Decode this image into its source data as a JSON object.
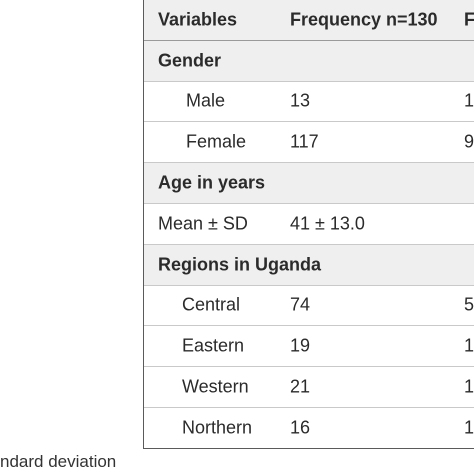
{
  "table": {
    "header": {
      "variables": "Variables",
      "frequency": "Frequency n=130",
      "col3": "F"
    },
    "sections": [
      {
        "title": "Gender",
        "rows": [
          {
            "label": "Male",
            "frequency": "13",
            "col3": "1"
          },
          {
            "label": "Female",
            "frequency": "117",
            "col3": "9"
          }
        ]
      },
      {
        "title": "Age in years",
        "rows": [
          {
            "label": "Mean ± SD",
            "frequency": "41 ± 13.0",
            "col3": ""
          }
        ]
      },
      {
        "title": "Regions in Uganda",
        "rows": [
          {
            "label": "Central",
            "frequency": "74",
            "col3": "5"
          },
          {
            "label": "Eastern",
            "frequency": "19",
            "col3": "1"
          },
          {
            "label": "Western",
            "frequency": "21",
            "col3": "1"
          },
          {
            "label": "Northern",
            "frequency": "16",
            "col3": "1"
          }
        ]
      }
    ]
  },
  "footnote": "ndard deviation"
}
